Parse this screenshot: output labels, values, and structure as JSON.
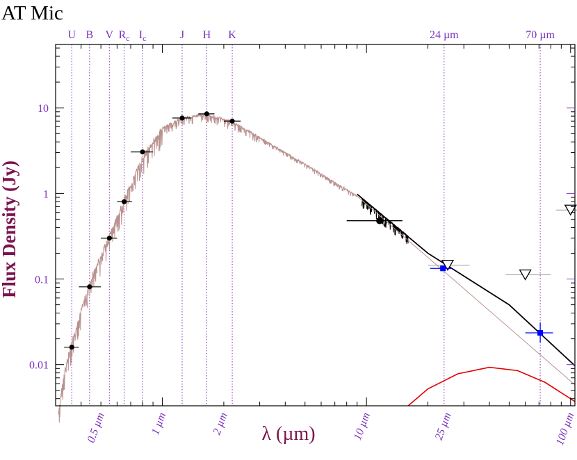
{
  "chart_data": {
    "type": "scatter",
    "title": "AT Mic",
    "xlabel": "λ (µm)",
    "ylabel": "Flux Density (Jy)",
    "x_scale": "log",
    "y_scale": "log",
    "xlim": [
      0.3,
      105
    ],
    "ylim": [
      0.0033,
      55
    ],
    "colors": {
      "axis_labels": "#7a1450",
      "ticks_text": "#7b2fbe",
      "band_lines": "#7b2fbe",
      "photosphere": "#b9918f",
      "model": "#000000",
      "disk": "#e00000",
      "mips": "#0000ff"
    },
    "y_ticks": [
      {
        "value": 0.01,
        "label": "0.01"
      },
      {
        "value": 0.1,
        "label": "0.1"
      },
      {
        "value": 1,
        "label": "1"
      },
      {
        "value": 10,
        "label": "10"
      }
    ],
    "x_ticks": [
      {
        "value": 0.5,
        "label": "0.5 µm"
      },
      {
        "value": 1,
        "label": "1 µm"
      },
      {
        "value": 2,
        "label": "2 µm"
      },
      {
        "value": 10,
        "label": "10 µm"
      },
      {
        "value": 25,
        "label": "25 µm"
      },
      {
        "value": 100,
        "label": "100 µm"
      }
    ],
    "bands": [
      {
        "label": "U",
        "sub": "",
        "x": 0.36
      },
      {
        "label": "B",
        "sub": "",
        "x": 0.44
      },
      {
        "label": "V",
        "sub": "",
        "x": 0.55
      },
      {
        "label": "R",
        "sub": "c",
        "x": 0.65
      },
      {
        "label": "I",
        "sub": "c",
        "x": 0.8
      },
      {
        "label": "J",
        "sub": "",
        "x": 1.25
      },
      {
        "label": "H",
        "sub": "",
        "x": 1.65
      },
      {
        "label": "K",
        "sub": "",
        "x": 2.2
      },
      {
        "label": "24 µm",
        "sub": "",
        "x": 24
      },
      {
        "label": "70 µm",
        "sub": "",
        "x": 71
      }
    ],
    "series": [
      {
        "kind": "photometry",
        "points": [
          {
            "x": 0.36,
            "y": 0.016,
            "xerr": [
              0.33,
              0.39
            ]
          },
          {
            "x": 0.44,
            "y": 0.081,
            "xerr": [
              0.39,
              0.5
            ]
          },
          {
            "x": 0.55,
            "y": 0.3,
            "xerr": [
              0.5,
              0.6
            ]
          },
          {
            "x": 0.65,
            "y": 0.8,
            "xerr": [
              0.6,
              0.71
            ]
          },
          {
            "x": 0.8,
            "y": 3.05,
            "xerr": [
              0.7,
              0.9
            ]
          },
          {
            "x": 1.25,
            "y": 7.6,
            "xerr": [
              1.12,
              1.38
            ]
          },
          {
            "x": 1.65,
            "y": 8.5,
            "xerr": [
              1.5,
              1.8
            ]
          },
          {
            "x": 2.2,
            "y": 7.0,
            "xerr": [
              2.0,
              2.42
            ]
          }
        ]
      },
      {
        "kind": "iras_12um",
        "points": [
          {
            "x": 11.6,
            "y": 0.48,
            "xerr": [
              8.0,
              15.0
            ]
          }
        ]
      },
      {
        "kind": "mips",
        "points": [
          {
            "x": 23.7,
            "y": 0.133,
            "xerr": [
              20.5,
              26.5
            ]
          },
          {
            "x": 71,
            "y": 0.0235,
            "xerr": [
              60,
              82
            ],
            "yerr": [
              0.018,
              0.031
            ]
          }
        ]
      },
      {
        "kind": "upper_limits",
        "points": [
          {
            "x": 25,
            "y": 0.145,
            "xerr": [
              20,
              32
            ]
          },
          {
            "x": 60,
            "y": 0.112,
            "xerr": [
              48,
              80
            ]
          },
          {
            "x": 100,
            "y": 0.64,
            "xerr": [
              85,
              115
            ]
          }
        ]
      },
      {
        "kind": "photosphere_extrapolation",
        "points": [
          {
            "x": 9.0,
            "y": 0.93
          },
          {
            "x": 105,
            "y": 0.0058
          }
        ]
      },
      {
        "kind": "model_total",
        "points": [
          {
            "x": 9.0,
            "y": 0.98
          },
          {
            "x": 20,
            "y": 0.2
          },
          {
            "x": 50,
            "y": 0.05
          },
          {
            "x": 105,
            "y": 0.0097
          }
        ]
      },
      {
        "kind": "disk_blackbody",
        "points": [
          {
            "x": 16,
            "y": 0.0033
          },
          {
            "x": 20,
            "y": 0.0052
          },
          {
            "x": 28,
            "y": 0.0078
          },
          {
            "x": 40,
            "y": 0.0093
          },
          {
            "x": 55,
            "y": 0.0085
          },
          {
            "x": 75,
            "y": 0.0062
          },
          {
            "x": 105,
            "y": 0.0037
          }
        ]
      }
    ]
  }
}
